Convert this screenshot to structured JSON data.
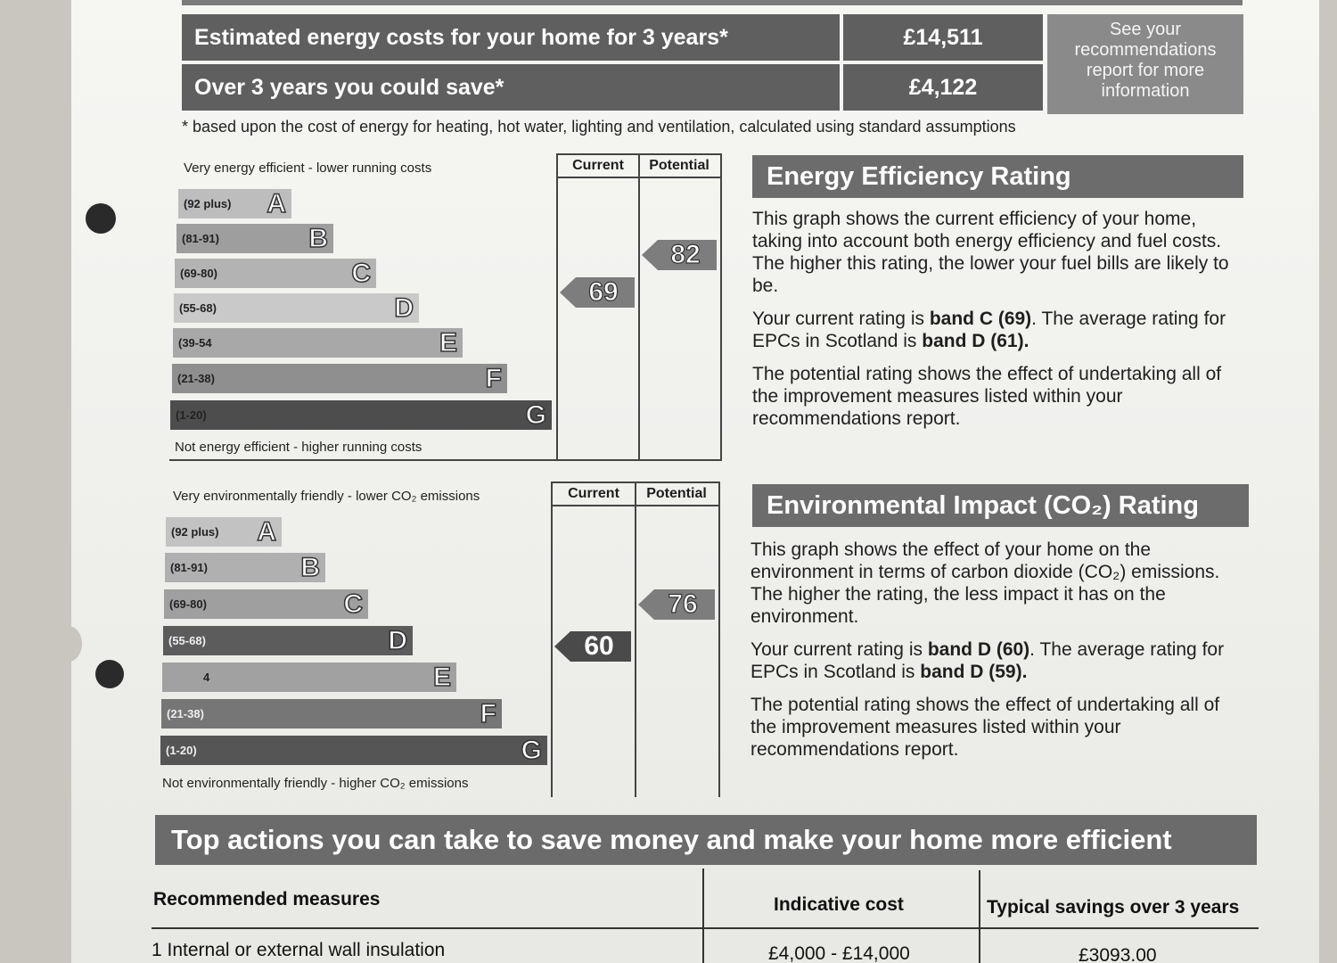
{
  "costs": {
    "rows": [
      {
        "label": "Estimated energy costs for your home for 3 years*",
        "value": "£14,511"
      },
      {
        "label": "Over 3 years you could save*",
        "value": "£4,122"
      }
    ],
    "see_box": "See your recommendations report for more information",
    "footnote": "* based upon the cost of energy for heating, hot water, lighting and ventilation, calculated using standard assumptions"
  },
  "energy_chart": {
    "top_text": "Very energy efficient - lower running costs",
    "bottom_text": "Not energy efficient - higher running costs",
    "col_current": "Current",
    "col_potential": "Potential",
    "bands": [
      {
        "range": "(92 plus)",
        "letter": "A"
      },
      {
        "range": "(81-91)",
        "letter": "B"
      },
      {
        "range": "(69-80)",
        "letter": "C"
      },
      {
        "range": "(55-68)",
        "letter": "D"
      },
      {
        "range": "(39-54",
        "letter": "E"
      },
      {
        "range": "(21-38)",
        "letter": "F"
      },
      {
        "range": "(1-20)",
        "letter": "G"
      }
    ],
    "current": "69",
    "potential": "82"
  },
  "env_chart": {
    "top_text": "Very environmentally friendly - lower CO₂ emissions",
    "bottom_text": "Not environmentally friendly - higher CO₂ emissions",
    "col_current": "Current",
    "col_potential": "Potential",
    "bands": [
      {
        "range": "(92 plus)",
        "letter": "A"
      },
      {
        "range": "(81-91)",
        "letter": "B"
      },
      {
        "range": "(69-80)",
        "letter": "C"
      },
      {
        "range": "(55-68)",
        "letter": "D"
      },
      {
        "range": "4",
        "letter": "E"
      },
      {
        "range": "(21-38)",
        "letter": "F"
      },
      {
        "range": "(1-20)",
        "letter": "G"
      }
    ],
    "current": "60",
    "potential": "76"
  },
  "energy_panel": {
    "title": "Energy Efficiency Rating",
    "p1": "This graph shows the current efficiency of your home, taking into account both energy efficiency and fuel costs. The higher this rating, the lower your fuel bills are likely to be.",
    "p2_a": "Your current rating is ",
    "p2_b": "band C (69)",
    "p2_c": ". The average rating for EPCs in Scotland is ",
    "p2_d": "band D (61).",
    "p3": "The potential rating shows the effect of undertaking all of the improvement measures listed within your recommendations report."
  },
  "env_panel": {
    "title": "Environmental Impact (CO₂) Rating",
    "p1": "This graph shows the effect of your home on the environment in terms of carbon dioxide (CO₂) emissions. The higher the rating, the less impact it has on the environment.",
    "p2_a": "Your current rating is ",
    "p2_b": "band D (60)",
    "p2_c": ". The average rating for EPCs in Scotland is ",
    "p2_d": "band D (59).",
    "p3": "The potential rating shows the effect of undertaking all of the improvement measures listed within your recommendations report."
  },
  "actions": {
    "title": "Top actions you can take to save money and make your home more efficient",
    "headers": {
      "measures": "Recommended measures",
      "cost": "Indicative cost",
      "savings": "Typical savings over 3 years"
    },
    "rows": [
      {
        "measure": "1 Internal or external wall insulation",
        "cost": "£4,000 - £14,000",
        "savings": "£3093.00"
      }
    ]
  },
  "colors": {
    "band_fill_light": "#a9a9a9",
    "band_fill_dark": "#4a4a4a",
    "header_fill": "#5f5f5f"
  }
}
